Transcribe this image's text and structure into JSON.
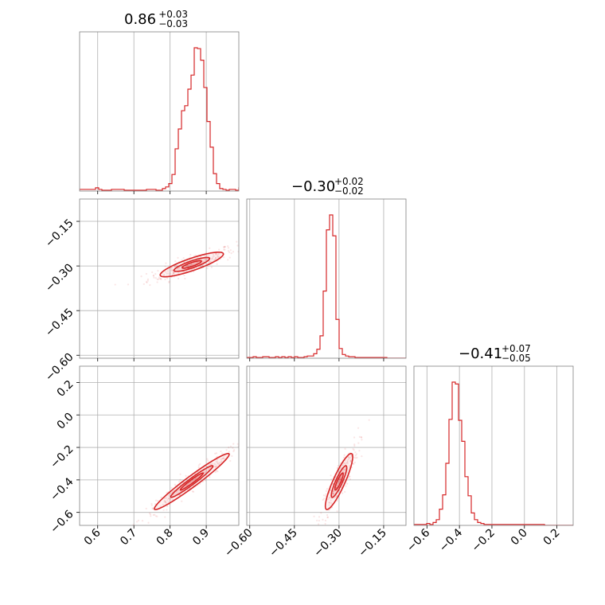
{
  "colors": {
    "main": "#d62728",
    "grid": "#b0b0b0",
    "spine": "#808080"
  },
  "chart_data": {
    "type": "corner",
    "parameters": [
      {
        "id": "p0",
        "range": [
          0.55,
          0.99
        ],
        "ticks": [
          "0.6",
          "0.7",
          "0.8",
          "0.9"
        ]
      },
      {
        "id": "p1",
        "range": [
          -0.61,
          -0.075
        ],
        "ticks": [
          "−0.60",
          "−0.45",
          "−0.30",
          "−0.15"
        ]
      },
      {
        "id": "p2",
        "range": [
          -0.68,
          0.3
        ],
        "ticks": [
          "−0.6",
          "−0.4",
          "−0.2",
          "0.0",
          "0.2"
        ]
      }
    ],
    "titles": [
      {
        "median": "0.86",
        "plus": "+0.03",
        "minus": "−0.03"
      },
      {
        "median": "−0.30",
        "plus": "+0.02",
        "minus": "−0.02"
      },
      {
        "median": "−0.41",
        "plus": "+0.07",
        "minus": "−0.05"
      }
    ],
    "histograms": [
      {
        "bins_start": 0.55,
        "bin_width": 0.0088,
        "counts": [
          2,
          2,
          2,
          2,
          2,
          4,
          2,
          1,
          1,
          1,
          2,
          2,
          2,
          2,
          1,
          1,
          1,
          1,
          1,
          1,
          1,
          2,
          2,
          2,
          1,
          1,
          3,
          5,
          9,
          20,
          51,
          75,
          97,
          103,
          123,
          140,
          173,
          172,
          158,
          125,
          84,
          53,
          21,
          9,
          3,
          2,
          1,
          2,
          2,
          1,
          4
        ]
      },
      {
        "bins_start": -0.61,
        "bin_width": 0.0107,
        "counts": [
          1,
          1,
          2,
          1,
          1,
          2,
          2,
          1,
          1,
          2,
          1,
          2,
          1,
          2,
          1,
          2,
          1,
          1,
          2,
          3,
          3,
          6,
          12,
          30,
          90,
          172,
          192,
          164,
          52,
          13,
          5,
          3,
          2,
          2,
          1,
          1,
          1,
          1,
          1,
          1,
          1,
          1,
          1,
          1,
          0,
          0,
          0,
          0,
          0,
          0
        ]
      },
      {
        "bins_start": -0.68,
        "bin_width": 0.0196,
        "counts": [
          1,
          1,
          1,
          1,
          2,
          1,
          3,
          6,
          17,
          32,
          65,
          111,
          150,
          148,
          110,
          88,
          51,
          31,
          13,
          6,
          3,
          2,
          1,
          1,
          1,
          1,
          1,
          1,
          1,
          1,
          1,
          1,
          1,
          1,
          1,
          1,
          1,
          1,
          1,
          1,
          1,
          0,
          0,
          0,
          0,
          0,
          0,
          0,
          0,
          0
        ]
      }
    ],
    "contours": [
      {
        "x": 1,
        "y": 0,
        "mean": [
          0.86,
          -0.295
        ],
        "sigma": [
          0.038,
          0.018
        ],
        "rho": 0.85,
        "levels": [
          2.3,
          1.3,
          0.7
        ]
      },
      {
        "x": 2,
        "y": 0,
        "mean": [
          0.86,
          -0.41
        ],
        "sigma": [
          0.045,
          0.075
        ],
        "rho": 0.97,
        "levels": [
          2.3,
          1.3,
          0.7
        ]
      },
      {
        "x": 2,
        "y": 1,
        "mean": [
          -0.3,
          -0.41
        ],
        "sigma": [
          0.02,
          0.075
        ],
        "rho": 0.88,
        "levels": [
          2.3,
          1.3,
          0.7
        ]
      }
    ]
  }
}
